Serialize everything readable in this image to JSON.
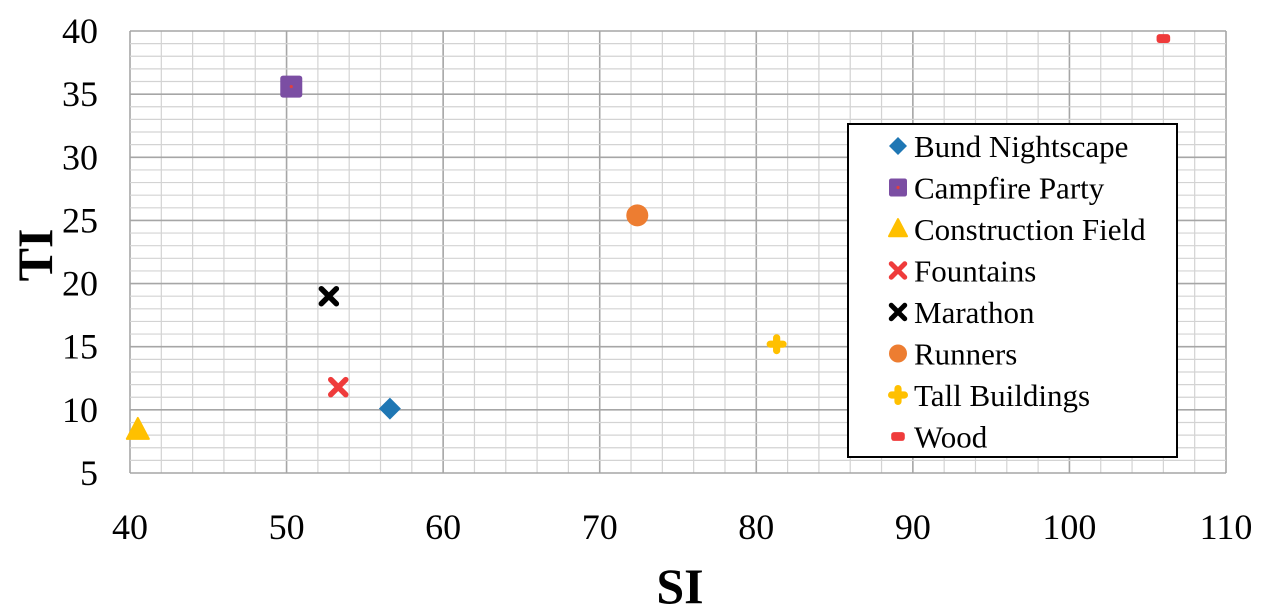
{
  "chart_data": {
    "type": "scatter",
    "title": "",
    "xlabel": "SI",
    "ylabel": "TI",
    "xlim": [
      40,
      110
    ],
    "ylim": [
      5,
      40
    ],
    "xticks": [
      "40",
      "50",
      "60",
      "70",
      "80",
      "90",
      "100",
      "110"
    ],
    "yticks": [
      "5",
      "10",
      "15",
      "20",
      "25",
      "30",
      "35",
      "40"
    ],
    "grid": true,
    "minor_grid": true,
    "legend_position": "right",
    "series": [
      {
        "name": "Bund Nightscape",
        "marker": "diamond",
        "color": "#1f77b4",
        "points": [
          {
            "x": 56.6,
            "y": 10.1
          }
        ]
      },
      {
        "name": "Campfire Party",
        "marker": "square",
        "color": "#7b4ea3",
        "points": [
          {
            "x": 50.3,
            "y": 35.6
          }
        ]
      },
      {
        "name": "Construction Field",
        "marker": "triangle",
        "color": "#ffc000",
        "points": [
          {
            "x": 40.5,
            "y": 8.4
          }
        ]
      },
      {
        "name": "Fountains",
        "marker": "x",
        "color": "#ef3b3b",
        "points": [
          {
            "x": 53.3,
            "y": 11.8
          }
        ]
      },
      {
        "name": "Marathon",
        "marker": "x",
        "color": "#000000",
        "points": [
          {
            "x": 52.7,
            "y": 19.0
          }
        ]
      },
      {
        "name": "Runners",
        "marker": "circle",
        "color": "#ed7d31",
        "points": [
          {
            "x": 72.4,
            "y": 25.4
          }
        ]
      },
      {
        "name": "Tall Buildings",
        "marker": "plus",
        "color": "#ffc000",
        "points": [
          {
            "x": 81.3,
            "y": 15.2
          }
        ]
      },
      {
        "name": "Wood",
        "marker": "dash",
        "color": "#ef3b3b",
        "points": [
          {
            "x": 106.0,
            "y": 39.4
          }
        ]
      }
    ]
  }
}
